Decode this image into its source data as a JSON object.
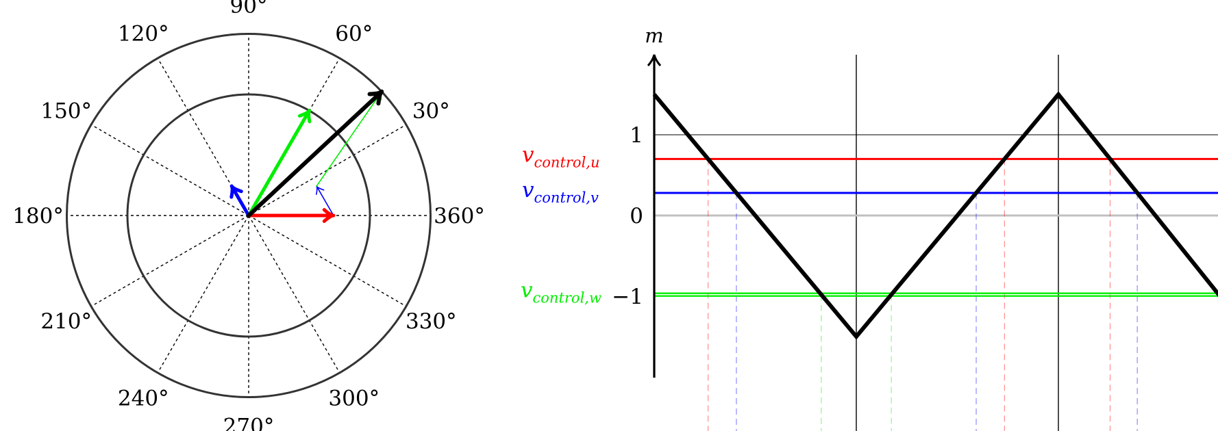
{
  "polar": {
    "angle_labels": [
      "90°",
      "60°",
      "30°",
      "360°",
      "330°",
      "300°",
      "270°",
      "240°",
      "210°",
      "180°",
      "150°",
      "120°"
    ],
    "angles_deg": [
      90,
      60,
      30,
      0,
      -30,
      -60,
      -90,
      -120,
      -150,
      180,
      150,
      120
    ],
    "ring_radii_relative": [
      1.0,
      1.5
    ],
    "vectors": [
      {
        "name": "u",
        "angle_deg": 0,
        "magnitude": 0.7,
        "color": "#ff0000"
      },
      {
        "name": "v",
        "angle_deg": 120,
        "magnitude": 0.28,
        "color": "#0000ff"
      },
      {
        "name": "w",
        "angle_deg": 60,
        "magnitude": 1.0,
        "color": "#00ee00"
      },
      {
        "name": "resultant",
        "angle_deg": 43,
        "magnitude": 1.5,
        "color": "#000000"
      }
    ],
    "construction": {
      "v_shift_color": "#0000ff",
      "w_shift_color": "#00ee00"
    }
  },
  "chart_data": {
    "type": "line",
    "ylabel": "m",
    "yticks": [
      {
        "value": 1,
        "label": "1"
      },
      {
        "value": 0,
        "label": "0"
      },
      {
        "value": -1,
        "label": "−1"
      }
    ],
    "carrier": {
      "x": [
        0,
        1,
        2,
        2.8
      ],
      "y": [
        1.5,
        -1.5,
        1.5,
        -1.0
      ],
      "color": "#000000"
    },
    "zero_line_color": "#c0c0c0",
    "reference_line_y": 1,
    "vertical_markers_x": [
      1,
      2
    ],
    "control_signals": [
      {
        "base": "v",
        "sub": "control,u",
        "value": 0.7,
        "color": "#ff0000"
      },
      {
        "base": "v",
        "sub": "control,v",
        "value": 0.28,
        "color": "#0000ff"
      },
      {
        "base": "v",
        "sub": "control,w",
        "value": -0.98,
        "color": "#00ee00"
      }
    ]
  }
}
